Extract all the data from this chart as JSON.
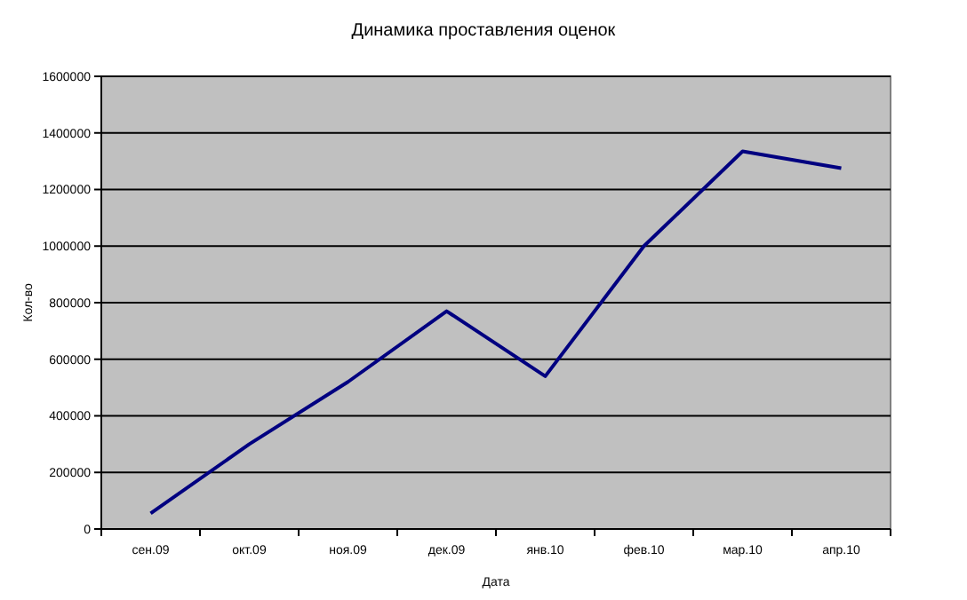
{
  "chart_data": {
    "type": "line",
    "title": "Динамика проставления оценок",
    "xlabel": "Дата",
    "ylabel": "Кол-во",
    "categories": [
      "сен.09",
      "окт.09",
      "ноя.09",
      "дек.09",
      "янв.10",
      "фев.10",
      "мар.10",
      "апр.10"
    ],
    "series": [
      {
        "color": "#000080",
        "values": [
          55000,
          300000,
          520000,
          770000,
          540000,
          1000000,
          1335000,
          1275000
        ]
      }
    ],
    "ylim": [
      0,
      1600000
    ],
    "yticks": [
      0,
      200000,
      400000,
      600000,
      800000,
      1000000,
      1200000,
      1400000,
      1600000
    ],
    "grid": "y",
    "marker": "none",
    "line_style": "solid"
  }
}
